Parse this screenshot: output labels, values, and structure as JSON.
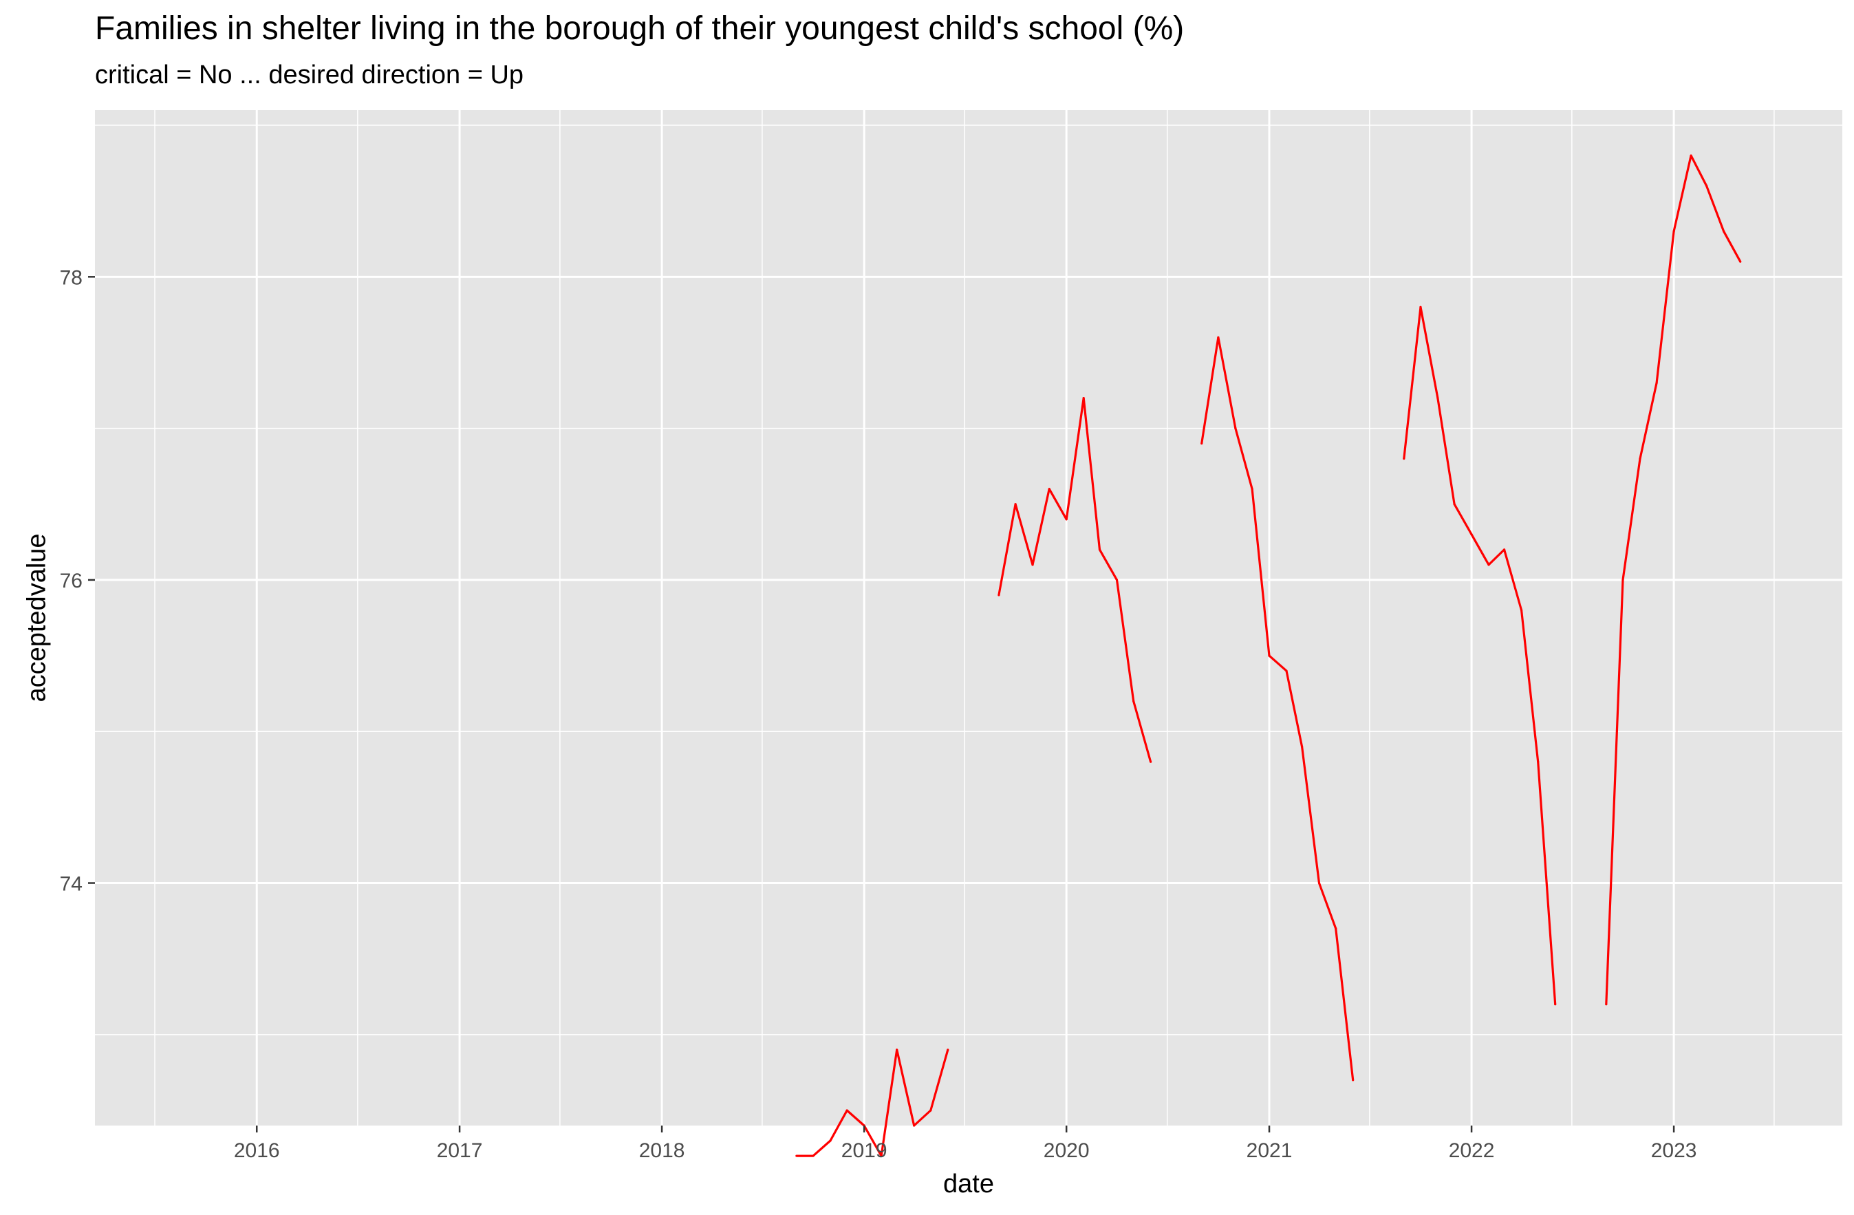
{
  "chart_data": {
    "type": "line",
    "title": "Families in shelter living in the borough of their youngest child's school (%)",
    "subtitle": "critical = No ... desired direction = Up",
    "xlabel": "date",
    "ylabel": "acceptedvalue",
    "x_ticks": [
      "2016",
      "2017",
      "2018",
      "2019",
      "2020",
      "2021",
      "2022",
      "2023"
    ],
    "y_ticks": [
      74,
      76,
      78
    ],
    "xlim": [
      "2015-03-15",
      "2023-11-01"
    ],
    "ylim": [
      72.4,
      79.1
    ],
    "grid": true,
    "line_color": "#ff0000",
    "panel_color": "#e5e5e5",
    "series": [
      {
        "values": [
          {
            "x": "2018-09-01",
            "y": 72.2
          },
          {
            "x": "2018-10-01",
            "y": 72.2
          },
          {
            "x": "2018-11-01",
            "y": 72.3
          },
          {
            "x": "2018-12-01",
            "y": 72.5
          },
          {
            "x": "2019-01-01",
            "y": 72.4
          },
          {
            "x": "2019-02-01",
            "y": 72.2
          },
          {
            "x": "2019-03-01",
            "y": 72.9
          },
          {
            "x": "2019-04-01",
            "y": 72.4
          },
          {
            "x": "2019-05-01",
            "y": 72.5
          },
          {
            "x": "2019-06-01",
            "y": 72.9
          }
        ]
      },
      {
        "values": [
          {
            "x": "2019-09-01",
            "y": 75.9
          },
          {
            "x": "2019-10-01",
            "y": 76.5
          },
          {
            "x": "2019-11-01",
            "y": 76.1
          },
          {
            "x": "2019-12-01",
            "y": 76.6
          },
          {
            "x": "2020-01-01",
            "y": 76.4
          },
          {
            "x": "2020-02-01",
            "y": 77.2
          },
          {
            "x": "2020-03-01",
            "y": 76.2
          },
          {
            "x": "2020-04-01",
            "y": 76.0
          },
          {
            "x": "2020-05-01",
            "y": 75.2
          },
          {
            "x": "2020-06-01",
            "y": 74.8
          }
        ]
      },
      {
        "values": [
          {
            "x": "2020-09-01",
            "y": 76.9
          },
          {
            "x": "2020-10-01",
            "y": 77.6
          },
          {
            "x": "2020-11-01",
            "y": 77.0
          },
          {
            "x": "2020-12-01",
            "y": 76.6
          },
          {
            "x": "2021-01-01",
            "y": 75.5
          },
          {
            "x": "2021-02-01",
            "y": 75.4
          },
          {
            "x": "2021-03-01",
            "y": 74.9
          },
          {
            "x": "2021-04-01",
            "y": 74.0
          },
          {
            "x": "2021-05-01",
            "y": 73.7
          },
          {
            "x": "2021-06-01",
            "y": 72.7
          }
        ]
      },
      {
        "values": [
          {
            "x": "2021-09-01",
            "y": 76.8
          },
          {
            "x": "2021-10-01",
            "y": 77.8
          },
          {
            "x": "2021-11-01",
            "y": 77.2
          },
          {
            "x": "2021-12-01",
            "y": 76.5
          },
          {
            "x": "2022-01-01",
            "y": 76.3
          },
          {
            "x": "2022-02-01",
            "y": 76.1
          },
          {
            "x": "2022-03-01",
            "y": 76.2
          },
          {
            "x": "2022-04-01",
            "y": 75.8
          },
          {
            "x": "2022-05-01",
            "y": 74.8
          },
          {
            "x": "2022-06-01",
            "y": 73.2
          }
        ]
      },
      {
        "values": [
          {
            "x": "2022-09-01",
            "y": 73.2
          },
          {
            "x": "2022-10-01",
            "y": 76.0
          },
          {
            "x": "2022-11-01",
            "y": 76.8
          },
          {
            "x": "2022-12-01",
            "y": 77.3
          },
          {
            "x": "2023-01-01",
            "y": 78.3
          },
          {
            "x": "2023-02-01",
            "y": 78.8
          },
          {
            "x": "2023-03-01",
            "y": 78.6
          },
          {
            "x": "2023-04-01",
            "y": 78.3
          },
          {
            "x": "2023-05-01",
            "y": 78.1
          }
        ]
      }
    ]
  }
}
